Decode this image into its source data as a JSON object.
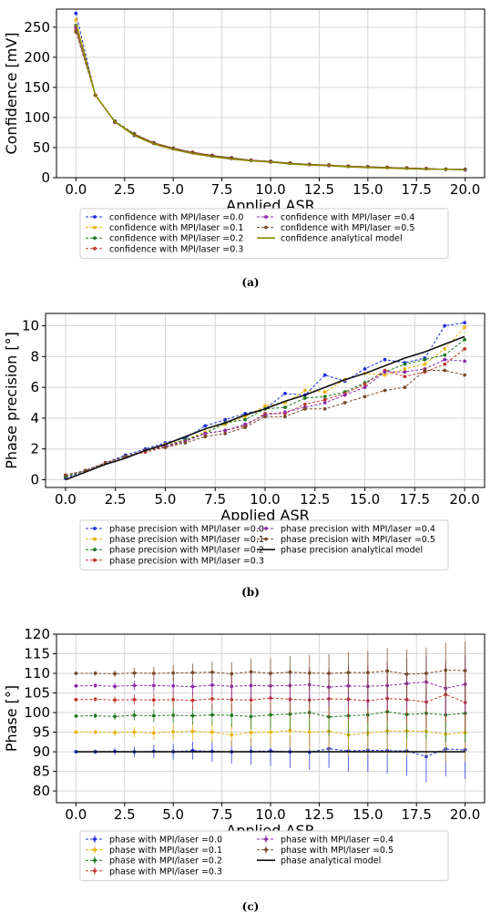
{
  "chart_data": [
    {
      "type": "line",
      "ylabel": "Confidence [mV]",
      "xlabel": "Applied ASR",
      "xlim": [
        -1,
        21
      ],
      "ylim": [
        0,
        280
      ],
      "xticks": [
        "0.0",
        "2.5",
        "5.0",
        "7.5",
        "10.0",
        "12.5",
        "15.0",
        "17.5",
        "20.0"
      ],
      "yticks": [
        "0",
        "50",
        "100",
        "150",
        "200",
        "250"
      ],
      "grid": true,
      "legend_position": "below",
      "x": [
        0,
        1,
        2,
        3,
        4,
        5,
        6,
        7,
        8,
        9,
        10,
        11,
        12,
        13,
        14,
        15,
        16,
        17,
        18,
        19,
        20
      ],
      "series": [
        {
          "name": "confidence with MPI/laser  =0.0",
          "color": "#1f2fd8",
          "values": [
            273,
            137,
            93,
            70,
            57,
            48,
            42,
            36,
            32,
            29,
            27,
            24,
            22,
            20,
            19,
            18,
            17,
            16,
            15,
            14,
            13
          ]
        },
        {
          "name": "confidence with MPI/laser  =0.1",
          "color": "#e8b40a",
          "values": [
            262,
            137,
            92,
            71,
            57,
            48,
            41,
            36,
            32,
            29,
            26,
            24,
            22,
            20,
            19,
            18,
            17,
            16,
            15,
            14,
            13
          ]
        },
        {
          "name": "confidence with MPI/laser  =0.2",
          "color": "#1e7a1e",
          "values": [
            253,
            137,
            94,
            73,
            58,
            49,
            42,
            37,
            33,
            29,
            27,
            24,
            22,
            21,
            19,
            18,
            17,
            16,
            15,
            14,
            14
          ]
        },
        {
          "name": "confidence with MPI/laser  =0.3",
          "color": "#c0392b",
          "values": [
            246,
            137,
            93,
            72,
            58,
            49,
            42,
            37,
            32,
            29,
            27,
            24,
            22,
            21,
            19,
            18,
            17,
            16,
            15,
            14,
            14
          ]
        },
        {
          "name": "confidence with MPI/laser  =0.4",
          "color": "#8e2aa8",
          "values": [
            250,
            137,
            92,
            71,
            57,
            48,
            42,
            36,
            32,
            29,
            26,
            24,
            22,
            20,
            19,
            18,
            17,
            16,
            15,
            14,
            13
          ]
        },
        {
          "name": "confidence with MPI/laser  =0.5",
          "color": "#7a4a28",
          "values": [
            242,
            137,
            93,
            72,
            58,
            49,
            42,
            37,
            33,
            29,
            27,
            24,
            22,
            21,
            19,
            18,
            17,
            16,
            15,
            14,
            14
          ]
        },
        {
          "name": "confidence analytical model",
          "color": "#8a8a00",
          "analytical": true,
          "values": [
            255,
            137,
            93,
            70,
            56,
            47,
            40,
            35,
            31,
            28,
            26,
            23,
            21,
            20,
            18,
            17,
            16,
            15,
            14,
            14,
            13
          ]
        }
      ],
      "caption": "(a)"
    },
    {
      "type": "line",
      "ylabel": "Phase precision [°]",
      "xlabel": "Applied ASR",
      "xlim": [
        -1,
        21
      ],
      "ylim": [
        -0.5,
        10.8
      ],
      "xticks": [
        "0.0",
        "2.5",
        "5.0",
        "7.5",
        "10.0",
        "12.5",
        "15.0",
        "17.5",
        "20.0"
      ],
      "yticks": [
        "0",
        "2",
        "4",
        "6",
        "8",
        "10"
      ],
      "grid": true,
      "legend_position": "below",
      "x": [
        0,
        1,
        2,
        3,
        4,
        5,
        6,
        7,
        8,
        9,
        10,
        11,
        12,
        13,
        14,
        15,
        16,
        17,
        18,
        19,
        20
      ],
      "series": [
        {
          "name": "phase precision with MPI/laser  =0.0",
          "color": "#1f2fd8",
          "values": [
            0.1,
            0.6,
            1.1,
            1.6,
            2.0,
            2.4,
            2.7,
            3.5,
            3.9,
            4.3,
            4.6,
            5.6,
            5.5,
            6.8,
            6.4,
            7.2,
            7.8,
            7.6,
            7.9,
            10.0,
            10.2
          ]
        },
        {
          "name": "phase precision with MPI/laser  =0.1",
          "color": "#e8b40a",
          "values": [
            0.2,
            0.6,
            1.1,
            1.5,
            1.9,
            2.3,
            2.6,
            3.1,
            3.6,
            4.1,
            4.8,
            5.0,
            5.8,
            5.7,
            6.5,
            6.9,
            6.8,
            7.2,
            7.5,
            8.5,
            9.9
          ]
        },
        {
          "name": "phase precision with MPI/laser  =0.2",
          "color": "#1e7a1e",
          "values": [
            0.2,
            0.6,
            1.1,
            1.5,
            1.9,
            2.2,
            2.6,
            3.0,
            3.7,
            3.9,
            4.6,
            4.7,
            5.3,
            5.4,
            5.7,
            6.3,
            7.0,
            7.5,
            7.8,
            8.1,
            9.1
          ]
        },
        {
          "name": "phase precision with MPI/laser  =0.3",
          "color": "#c0392b",
          "values": [
            0.3,
            0.6,
            1.1,
            1.5,
            1.8,
            2.1,
            2.5,
            3.0,
            3.2,
            3.5,
            4.3,
            4.3,
            4.9,
            5.2,
            5.6,
            6.2,
            7.1,
            6.7,
            7.0,
            7.5,
            8.5
          ]
        },
        {
          "name": "phase precision with MPI/laser  =0.4",
          "color": "#8e2aa8",
          "values": [
            0.3,
            0.6,
            1.1,
            1.5,
            1.9,
            2.2,
            2.5,
            3.0,
            3.2,
            3.6,
            4.2,
            4.4,
            4.7,
            5.0,
            5.5,
            6.0,
            7.0,
            7.0,
            7.2,
            7.8,
            7.7
          ]
        },
        {
          "name": "phase precision with MPI/laser  =0.5",
          "color": "#7a4a28",
          "values": [
            0.3,
            0.6,
            1.1,
            1.5,
            1.9,
            2.1,
            2.4,
            2.8,
            3.0,
            3.4,
            4.1,
            4.1,
            4.6,
            4.6,
            5.0,
            5.4,
            5.8,
            6.0,
            7.1,
            7.1,
            6.8
          ]
        },
        {
          "name": "phase precision analytical model",
          "color": "#111111",
          "analytical": true,
          "values": [
            0.0,
            0.5,
            1.0,
            1.4,
            1.9,
            2.3,
            2.8,
            3.3,
            3.7,
            4.2,
            4.6,
            5.1,
            5.5,
            6.0,
            6.5,
            6.9,
            7.4,
            7.9,
            8.3,
            8.8,
            9.3
          ]
        }
      ],
      "caption": "(b)"
    },
    {
      "type": "line",
      "ylabel": "Phase [°]",
      "xlabel": "Applied ASR",
      "xlim": [
        -1,
        21
      ],
      "ylim": [
        77,
        120
      ],
      "xticks": [
        "0.0",
        "2.5",
        "5.0",
        "7.5",
        "10.0",
        "12.5",
        "15.0",
        "17.5",
        "20.0"
      ],
      "yticks": [
        "80",
        "85",
        "90",
        "95",
        "100",
        "105",
        "110",
        "115",
        "120"
      ],
      "grid": true,
      "legend_position": "below",
      "x": [
        0,
        1,
        2,
        3,
        4,
        5,
        6,
        7,
        8,
        9,
        10,
        11,
        12,
        13,
        14,
        15,
        16,
        17,
        18,
        19,
        20
      ],
      "series": [
        {
          "name": "phase with MPI/laser  =0.0",
          "color": "#1f2fd8",
          "values": [
            90.0,
            90.0,
            90.1,
            90.0,
            90.1,
            90.0,
            90.3,
            90.1,
            90.0,
            90.1,
            90.2,
            90.0,
            89.9,
            90.8,
            90.2,
            90.4,
            90.3,
            90.2,
            88.8,
            90.7,
            90.5
          ],
          "errors": [
            0.3,
            0.6,
            0.9,
            1.3,
            1.7,
            2.0,
            2.3,
            2.7,
            3.0,
            3.4,
            3.8,
            4.1,
            4.5,
            4.9,
            5.2,
            5.5,
            5.9,
            6.3,
            6.6,
            7.0,
            7.4
          ]
        },
        {
          "name": "phase with MPI/laser  =0.1",
          "color": "#e8b40a",
          "values": [
            95.0,
            95.0,
            94.9,
            95.0,
            94.8,
            95.1,
            95.2,
            95.0,
            94.3,
            94.9,
            95.0,
            95.4,
            95.0,
            95.2,
            94.3,
            94.8,
            95.3,
            95.3,
            95.2,
            94.5,
            94.9
          ],
          "errors": [
            0.3,
            0.6,
            0.9,
            1.3,
            1.7,
            2.0,
            2.3,
            2.7,
            3.0,
            3.4,
            3.8,
            4.1,
            4.5,
            4.9,
            5.2,
            5.5,
            5.9,
            6.3,
            6.6,
            7.0,
            7.4
          ]
        },
        {
          "name": "phase with MPI/laser  =0.2",
          "color": "#1e7a1e",
          "values": [
            99.1,
            99.2,
            99.0,
            99.3,
            99.2,
            99.3,
            99.2,
            99.4,
            99.3,
            99.0,
            99.4,
            99.6,
            100.0,
            98.9,
            99.2,
            99.4,
            100.2,
            99.5,
            99.8,
            99.4,
            99.8
          ],
          "errors": [
            0.3,
            0.6,
            0.9,
            1.3,
            1.7,
            2.0,
            2.3,
            2.7,
            3.0,
            3.4,
            3.8,
            4.1,
            4.5,
            4.9,
            5.2,
            5.5,
            5.9,
            6.3,
            6.6,
            7.0,
            7.4
          ]
        },
        {
          "name": "phase with MPI/laser  =0.3",
          "color": "#c0392b",
          "values": [
            103.3,
            103.4,
            103.2,
            103.3,
            103.2,
            103.3,
            103.1,
            103.5,
            103.3,
            103.2,
            103.7,
            103.4,
            103.2,
            103.5,
            103.4,
            103.0,
            103.6,
            103.3,
            102.7,
            104.6,
            102.6
          ],
          "errors": [
            0.3,
            0.6,
            0.9,
            1.3,
            1.7,
            2.0,
            2.3,
            2.7,
            3.0,
            3.4,
            3.8,
            4.1,
            4.5,
            4.9,
            5.2,
            5.5,
            5.9,
            6.3,
            6.6,
            7.0,
            7.4
          ]
        },
        {
          "name": "phase with MPI/laser  =0.4",
          "color": "#8e2aa8",
          "values": [
            106.8,
            106.9,
            106.7,
            106.9,
            106.9,
            106.8,
            106.6,
            107.0,
            106.7,
            106.9,
            106.8,
            106.9,
            107.1,
            106.5,
            106.8,
            106.7,
            106.9,
            107.4,
            107.8,
            106.2,
            107.2
          ],
          "errors": [
            0.3,
            0.6,
            0.9,
            1.3,
            1.7,
            2.0,
            2.3,
            2.7,
            3.0,
            3.4,
            3.8,
            4.1,
            4.5,
            4.9,
            5.2,
            5.5,
            5.9,
            6.3,
            6.6,
            7.0,
            7.4
          ]
        },
        {
          "name": "phase with MPI/laser  =0.5",
          "color": "#7a4a28",
          "values": [
            110.0,
            110.0,
            109.9,
            110.1,
            110.0,
            110.1,
            110.2,
            110.3,
            109.9,
            110.4,
            110.0,
            110.3,
            110.1,
            110.0,
            110.2,
            110.2,
            110.6,
            109.8,
            110.0,
            110.8,
            110.7
          ],
          "errors": [
            0.3,
            0.6,
            0.9,
            1.3,
            1.7,
            2.0,
            2.3,
            2.7,
            3.0,
            3.4,
            3.8,
            4.1,
            4.5,
            4.9,
            5.2,
            5.5,
            5.9,
            6.3,
            6.6,
            7.0,
            7.4
          ]
        },
        {
          "name": "phase analytical model",
          "color": "#111111",
          "analytical": true,
          "values": [
            90,
            90,
            90,
            90,
            90,
            90,
            90,
            90,
            90,
            90,
            90,
            90,
            90,
            90,
            90,
            90,
            90,
            90,
            90,
            90,
            90
          ]
        }
      ],
      "caption": "(c)"
    }
  ]
}
